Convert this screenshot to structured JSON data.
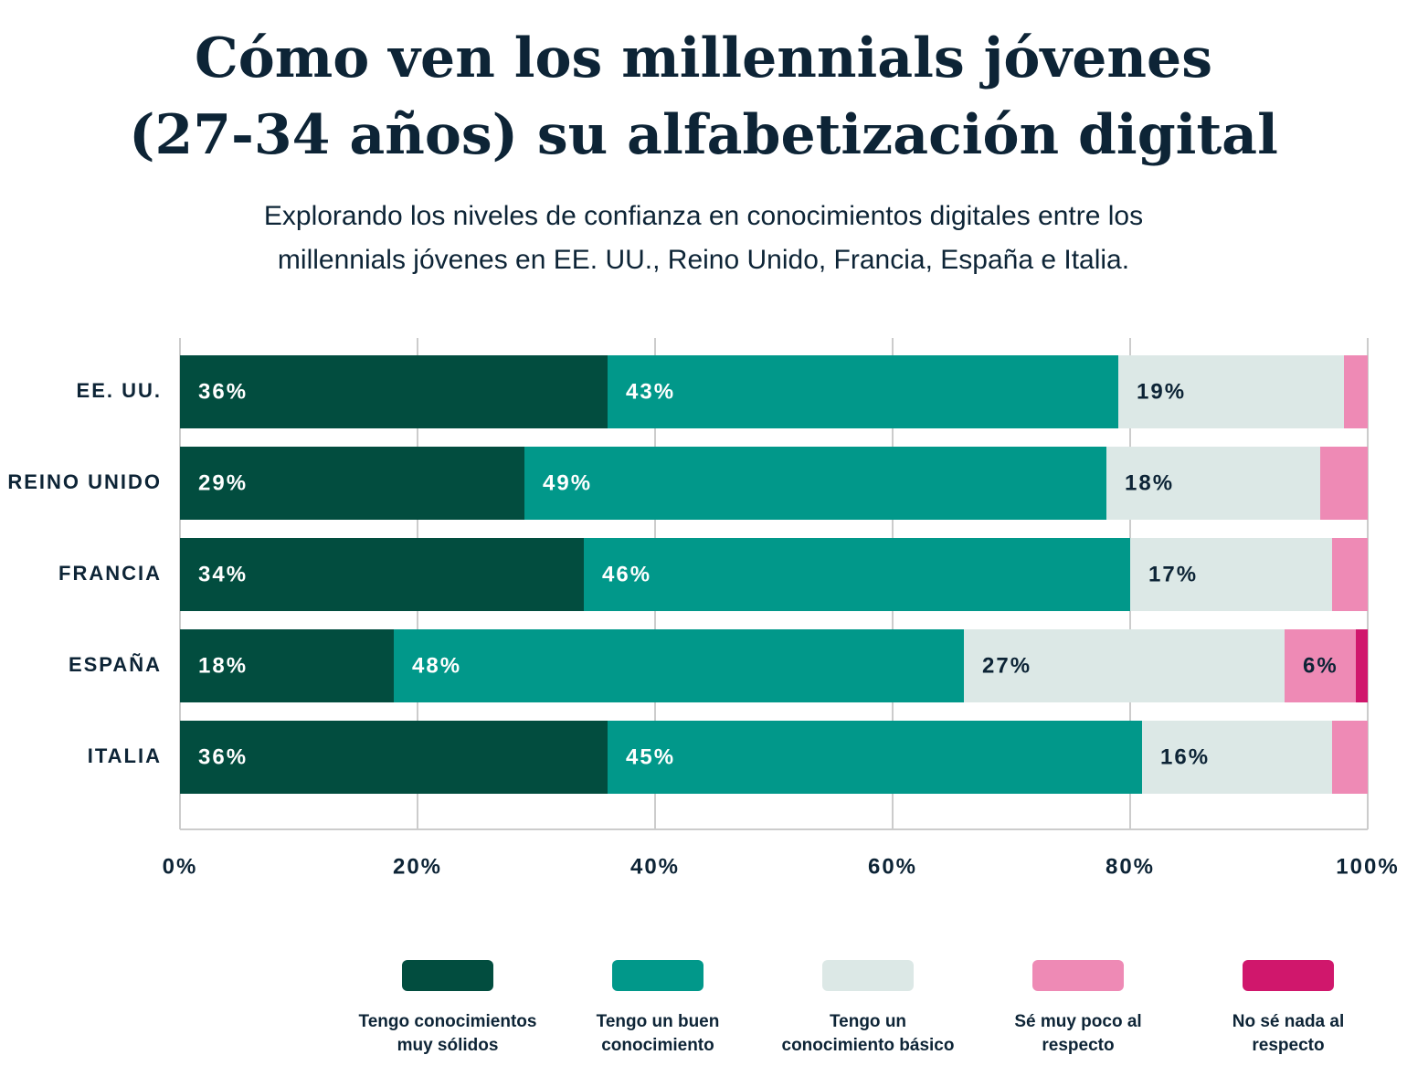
{
  "chart_data": {
    "type": "stacked-bar-horizontal",
    "title": "Cómo ven los millennials jóvenes\n(27-34 años) su alfabetización digital",
    "subtitle": "Explorando los niveles de confianza en conocimientos digitales entre los\nmillennials jóvenes en EE. UU., Reino Unido, Francia, España e Italia.",
    "categories": [
      "EE. UU.",
      "REINO UNIDO",
      "FRANCIA",
      "ESPAÑA",
      "ITALIA"
    ],
    "series": [
      {
        "name": "Tengo conocimientos\nmuy sólidos",
        "color": "#024d3f",
        "values": [
          36,
          29,
          34,
          18,
          36
        ],
        "value_labels": [
          "36%",
          "29%",
          "34%",
          "18%",
          "36%"
        ]
      },
      {
        "name": "Tengo un buen\nconocimiento",
        "color": "#01988a",
        "values": [
          43,
          49,
          46,
          48,
          45
        ],
        "value_labels": [
          "43%",
          "49%",
          "46%",
          "48%",
          "45%"
        ]
      },
      {
        "name": "Tengo un\nconocimiento básico",
        "color": "#dce8e6",
        "values": [
          19,
          18,
          17,
          27,
          16
        ],
        "value_labels": [
          "19%",
          "18%",
          "17%",
          "27%",
          "16%"
        ]
      },
      {
        "name": "Sé muy poco al\nrespecto",
        "color": "#ee8ab5",
        "values": [
          2,
          4,
          3,
          6,
          3
        ],
        "value_labels": [
          null,
          null,
          null,
          "6%",
          null
        ]
      },
      {
        "name": "No sé nada al\nrespecto",
        "color": "#d0176c",
        "values": [
          0,
          0,
          0,
          1,
          0
        ]
      }
    ],
    "xlim": [
      0,
      100
    ],
    "xticks": [
      {
        "value": 0,
        "label": "0%"
      },
      {
        "value": 20,
        "label": "20%"
      },
      {
        "value": 40,
        "label": "40%"
      },
      {
        "value": 60,
        "label": "60%"
      },
      {
        "value": 80,
        "label": "80%"
      },
      {
        "value": 100,
        "label": "100%"
      }
    ],
    "grid": true
  }
}
